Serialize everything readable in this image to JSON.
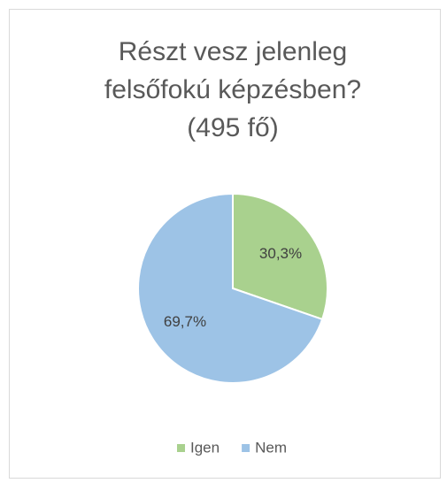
{
  "chart_data": {
    "type": "pie",
    "title": [
      "Részt vesz jelenleg",
      "felsőfokú képzésben?",
      "(495 fő)"
    ],
    "categories": [
      "Igen",
      "Nem"
    ],
    "values": [
      30.3,
      69.7
    ],
    "value_labels": [
      "30,3%",
      "69,7%"
    ],
    "colors": [
      "#a9d18e",
      "#9dc3e6"
    ],
    "legend": "bottom"
  }
}
